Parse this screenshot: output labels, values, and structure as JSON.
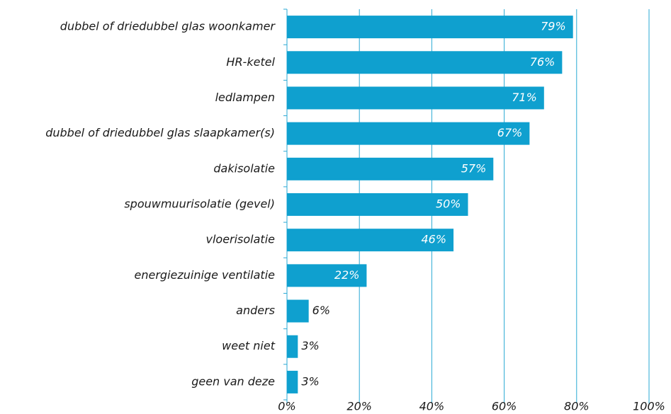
{
  "chart_data": {
    "type": "bar",
    "orientation": "horizontal",
    "categories": [
      "dubbel of driedubbel glas woonkamer",
      "HR-ketel",
      "ledlampen",
      "dubbel of driedubbel glas slaapkamer(s)",
      "dakisolatie",
      "spouwmuurisolatie (gevel)",
      "vloerisolatie",
      "energiezuinige ventilatie",
      "anders",
      "weet niet",
      "geen van deze"
    ],
    "values": [
      79,
      76,
      71,
      67,
      57,
      50,
      46,
      22,
      6,
      3,
      3
    ],
    "value_labels": [
      "79%",
      "76%",
      "71%",
      "67%",
      "57%",
      "50%",
      "46%",
      "22%",
      "6%",
      "3%",
      "3%"
    ],
    "color": "#0fa0cf",
    "xlim": [
      0,
      100
    ],
    "xticks": [
      {
        "value": 0,
        "label": "0%"
      },
      {
        "value": 20,
        "label": "20%"
      },
      {
        "value": 40,
        "label": "40%"
      },
      {
        "value": 60,
        "label": "60%"
      },
      {
        "value": 80,
        "label": "80%"
      },
      {
        "value": 100,
        "label": "100%"
      }
    ],
    "grid": true
  }
}
